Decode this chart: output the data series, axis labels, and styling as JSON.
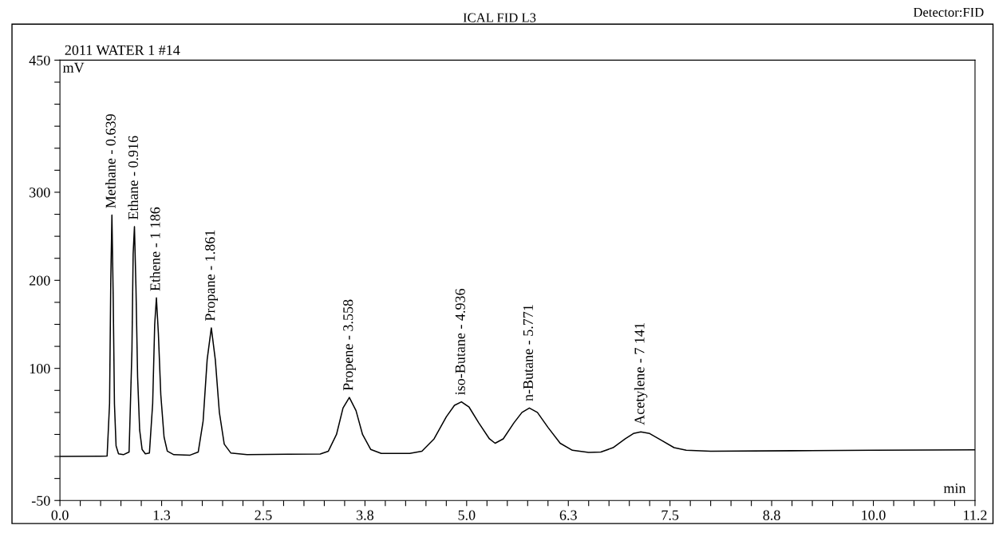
{
  "chart_data": {
    "type": "line",
    "title": "ICAL FID L3",
    "subtitle": "2011 WATER 1 #14",
    "annotations": [
      "Detector:FID",
      {
        "text": "Methane - 0.639",
        "x": 0.639,
        "y": 274
      },
      {
        "text": "Ethane - 0.916",
        "x": 0.916,
        "y": 261
      },
      {
        "text": "Ethene - 1 186",
        "x": 1.186,
        "y": 180
      },
      {
        "text": "Propane - 1.861",
        "x": 1.861,
        "y": 146
      },
      {
        "text": "Propene - 3.558",
        "x": 3.558,
        "y": 67
      },
      {
        "text": "iso-Butane - 4.936",
        "x": 4.936,
        "y": 62
      },
      {
        "text": "n-Butane - 5.771",
        "x": 5.771,
        "y": 55
      },
      {
        "text": "Acetylene - 7 141",
        "x": 7.141,
        "y": 28
      }
    ],
    "xlabel": "min",
    "ylabel": "mV",
    "x": [
      0.0,
      0.5,
      0.58,
      0.61,
      0.625,
      0.639,
      0.655,
      0.67,
      0.69,
      0.72,
      0.78,
      0.85,
      0.885,
      0.9,
      0.916,
      0.935,
      0.955,
      0.98,
      1.01,
      1.05,
      1.1,
      1.14,
      1.165,
      1.186,
      1.21,
      1.24,
      1.28,
      1.32,
      1.4,
      1.6,
      1.7,
      1.76,
      1.81,
      1.861,
      1.91,
      1.96,
      2.02,
      2.1,
      2.3,
      2.8,
      3.2,
      3.3,
      3.4,
      3.48,
      3.558,
      3.64,
      3.72,
      3.82,
      3.95,
      4.3,
      4.45,
      4.6,
      4.75,
      4.85,
      4.936,
      5.03,
      5.15,
      5.28,
      5.35,
      5.45,
      5.58,
      5.68,
      5.771,
      5.87,
      6.0,
      6.15,
      6.3,
      6.5,
      6.65,
      6.8,
      6.95,
      7.05,
      7.141,
      7.25,
      7.4,
      7.55,
      7.7,
      8.0,
      9.0,
      10.0,
      11.25
    ],
    "series": [
      {
        "color": "#000000",
        "values": [
          0,
          0.3,
          0.5,
          60,
          200,
          274,
          180,
          60,
          12,
          3,
          2,
          5,
          120,
          230,
          261,
          190,
          90,
          30,
          8,
          3,
          4,
          60,
          150,
          180,
          140,
          70,
          22,
          6,
          2,
          1.5,
          5,
          40,
          110,
          146,
          110,
          50,
          14,
          4,
          2,
          2.5,
          2.7,
          6,
          25,
          55,
          67,
          52,
          25,
          8,
          3.5,
          3.5,
          6,
          20,
          45,
          58,
          62,
          56,
          38,
          20,
          15,
          20,
          38,
          50,
          55,
          50,
          33,
          15,
          7,
          4.5,
          5,
          10,
          20,
          26,
          28,
          26,
          18,
          10,
          7,
          6,
          6.5,
          7,
          7.5
        ]
      }
    ],
    "xlim": [
      0,
      11.25
    ],
    "ylim": [
      -50,
      450
    ],
    "xticks": [
      {
        "value": 0,
        "label": "0.0"
      },
      {
        "value": 0.25,
        "label": null
      },
      {
        "value": 0.5,
        "label": null
      },
      {
        "value": 0.75,
        "label": null
      },
      {
        "value": 1.0,
        "label": null
      },
      {
        "value": 1.25,
        "label": "1.3"
      },
      {
        "value": 1.5,
        "label": null
      },
      {
        "value": 1.75,
        "label": null
      },
      {
        "value": 2.0,
        "label": null
      },
      {
        "value": 2.25,
        "label": null
      },
      {
        "value": 2.5,
        "label": "2.5"
      },
      {
        "value": 2.75,
        "label": null
      },
      {
        "value": 3.0,
        "label": null
      },
      {
        "value": 3.25,
        "label": null
      },
      {
        "value": 3.5,
        "label": null
      },
      {
        "value": 3.75,
        "label": "3.8"
      },
      {
        "value": 4.0,
        "label": null
      },
      {
        "value": 4.25,
        "label": null
      },
      {
        "value": 4.5,
        "label": null
      },
      {
        "value": 4.75,
        "label": null
      },
      {
        "value": 5.0,
        "label": "5.0"
      },
      {
        "value": 5.25,
        "label": null
      },
      {
        "value": 5.5,
        "label": null
      },
      {
        "value": 5.75,
        "label": null
      },
      {
        "value": 6.0,
        "label": null
      },
      {
        "value": 6.25,
        "label": "6.3"
      },
      {
        "value": 6.5,
        "label": null
      },
      {
        "value": 6.75,
        "label": null
      },
      {
        "value": 7.0,
        "label": null
      },
      {
        "value": 7.25,
        "label": null
      },
      {
        "value": 7.5,
        "label": "7.5"
      },
      {
        "value": 7.75,
        "label": null
      },
      {
        "value": 8.0,
        "label": null
      },
      {
        "value": 8.25,
        "label": null
      },
      {
        "value": 8.5,
        "label": null
      },
      {
        "value": 8.75,
        "label": "8.8"
      },
      {
        "value": 9.0,
        "label": null
      },
      {
        "value": 9.25,
        "label": null
      },
      {
        "value": 9.5,
        "label": null
      },
      {
        "value": 9.75,
        "label": null
      },
      {
        "value": 10.0,
        "label": "10.0"
      },
      {
        "value": 10.25,
        "label": null
      },
      {
        "value": 10.5,
        "label": null
      },
      {
        "value": 10.75,
        "label": null
      },
      {
        "value": 11.0,
        "label": null
      },
      {
        "value": 11.25,
        "label": "11.2"
      }
    ],
    "yticks": [
      -50,
      {
        "value": -25,
        "label": null
      },
      {
        "value": 0,
        "label": null
      },
      {
        "value": 25,
        "label": null
      },
      {
        "value": 50,
        "label": null
      },
      {
        "value": 75,
        "label": null
      },
      100,
      {
        "value": 125,
        "label": null
      },
      {
        "value": 150,
        "label": null
      },
      {
        "value": 175,
        "label": null
      },
      200,
      {
        "value": 225,
        "label": null
      },
      {
        "value": 250,
        "label": null
      },
      {
        "value": 275,
        "label": null
      },
      300,
      {
        "value": 325,
        "label": null
      },
      {
        "value": 350,
        "label": null
      },
      {
        "value": 375,
        "label": null
      },
      {
        "value": 400,
        "label": null
      },
      {
        "value": 425,
        "label": null
      },
      450
    ],
    "grid": false,
    "legend": false,
    "marker": "none",
    "line_style": "solid"
  }
}
